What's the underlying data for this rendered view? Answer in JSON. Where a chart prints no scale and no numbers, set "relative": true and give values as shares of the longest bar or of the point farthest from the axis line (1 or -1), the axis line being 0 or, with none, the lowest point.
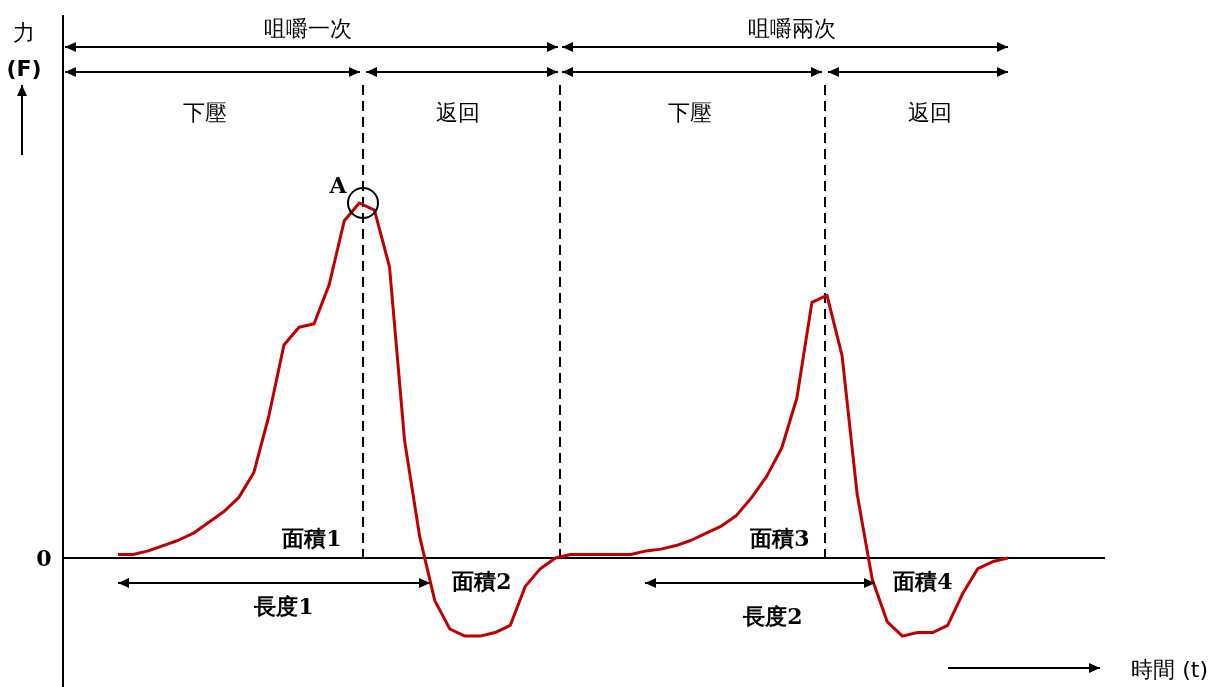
{
  "chart_data": {
    "type": "line",
    "relative": true,
    "line_style": "solid",
    "annotations": [
      "咀嚼一次",
      "咀嚼兩次",
      "下壓",
      "返回",
      "下壓",
      "返回",
      "A",
      "面積1",
      "面積2",
      "面積3",
      "面積4",
      "長度1",
      "長度2",
      "0",
      "時間 (t)",
      "力",
      "(F)"
    ],
    "categories": [
      null,
      null,
      null,
      null,
      null,
      null,
      null,
      null,
      null,
      null,
      null,
      null,
      null,
      null,
      null,
      null,
      null,
      null,
      null,
      null,
      null,
      null,
      null,
      null,
      null,
      null,
      null,
      null,
      null,
      null,
      null,
      null,
      null,
      null,
      null,
      null,
      null,
      null,
      null,
      null,
      null,
      null,
      null,
      null,
      null,
      null,
      null,
      null,
      null,
      null,
      null,
      null,
      null,
      null,
      null,
      null,
      null,
      null,
      null,
      null
    ],
    "series": [
      {
        "color": "#c00000",
        "values": [
          0.01,
          0.01,
          0.02,
          0.035,
          0.05,
          0.07,
          0.1,
          0.13,
          0.17,
          0.24,
          0.4,
          0.6,
          0.65,
          0.66,
          0.77,
          0.95,
          1,
          0.98,
          0.82,
          0.33,
          0.06,
          -0.12,
          -0.2,
          -0.22,
          -0.22,
          -0.21,
          -0.19,
          -0.08,
          -0.03,
          0,
          0.01,
          0.01,
          0.01,
          0.01,
          0.01,
          0.02,
          0.025,
          0.035,
          0.05,
          0.07,
          0.09,
          0.12,
          0.17,
          0.23,
          0.31,
          0.45,
          0.72,
          0.74,
          0.57,
          0.18,
          -0.06,
          -0.18,
          -0.22,
          -0.21,
          -0.21,
          -0.19,
          -0.1,
          -0.03,
          -0.01,
          0
        ]
      }
    ]
  }
}
